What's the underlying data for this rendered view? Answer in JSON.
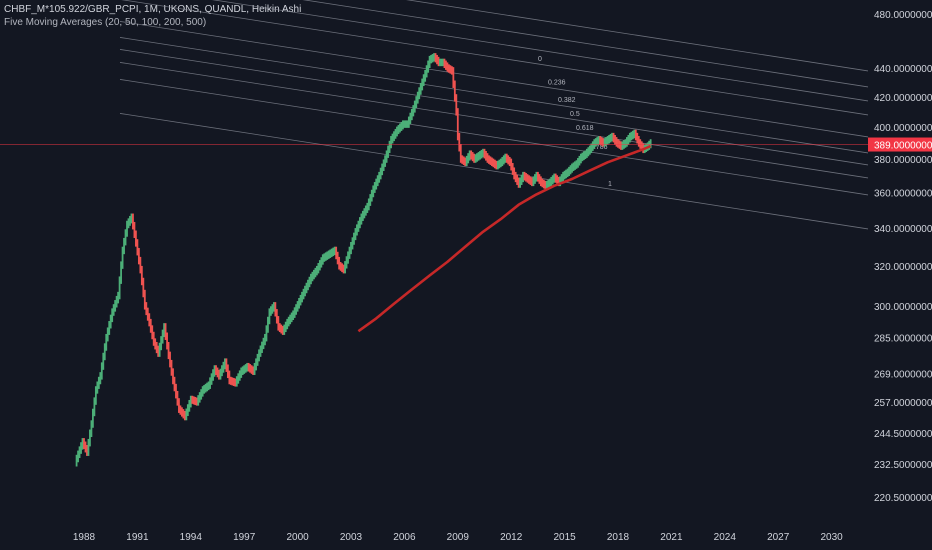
{
  "header": {
    "symbol_line": "CHBF_M*105.922/GBR_PCPI, 1M, UKONS, QUANDL, Heikin Ashi",
    "indicator_line": "Five Moving Averages (20, 50, 100, 200, 500)"
  },
  "colors": {
    "background": "#131722",
    "up": "#26a69a",
    "up_bright": "#4caf78",
    "down": "#ef5350",
    "ma": "#c62828",
    "fib_line": "#8a8e99",
    "price_line": "#f23645",
    "axis_text": "#d1d4dc"
  },
  "chart_data": {
    "type": "candlestick",
    "title": "",
    "y_scale": "log",
    "x_ticks": [
      "1988",
      "1991",
      "1994",
      "1997",
      "2000",
      "2003",
      "2006",
      "2009",
      "2012",
      "2015",
      "2018",
      "2021",
      "2024",
      "2027",
      "2030"
    ],
    "y_ticks": [
      {
        "label": "480.00000000",
        "value": 480
      },
      {
        "label": "440.00000000",
        "value": 440
      },
      {
        "label": "420.00000000",
        "value": 420
      },
      {
        "label": "400.00000000",
        "value": 400
      },
      {
        "label": "380.00000000",
        "value": 380
      },
      {
        "label": "360.00000000",
        "value": 360
      },
      {
        "label": "340.00000000",
        "value": 340
      },
      {
        "label": "320.00000000",
        "value": 320
      },
      {
        "label": "300.00000000",
        "value": 300
      },
      {
        "label": "285.00000000",
        "value": 285
      },
      {
        "label": "269.00000000",
        "value": 269
      },
      {
        "label": "257.00000000",
        "value": 257
      },
      {
        "label": "244.50000000",
        "value": 244.5
      },
      {
        "label": "232.50000000",
        "value": 232.5
      },
      {
        "label": "220.50000000",
        "value": 220.5
      }
    ],
    "last_price": {
      "label": "389.00000000",
      "value": 389
    },
    "price_path": [
      [
        "1987-07",
        233
      ],
      [
        "1987-12",
        241
      ],
      [
        "1988-03",
        237
      ],
      [
        "1988-06",
        248
      ],
      [
        "1988-09",
        262
      ],
      [
        "1988-12",
        268
      ],
      [
        "1989-04",
        285
      ],
      [
        "1989-08",
        297
      ],
      [
        "1989-12",
        305
      ],
      [
        "1990-03",
        328
      ],
      [
        "1990-06",
        342
      ],
      [
        "1990-09",
        346
      ],
      [
        "1990-12",
        332
      ],
      [
        "1991-03",
        318
      ],
      [
        "1991-06",
        300
      ],
      [
        "1991-09",
        292
      ],
      [
        "1991-12",
        283
      ],
      [
        "1992-03",
        278
      ],
      [
        "1992-07",
        290
      ],
      [
        "1992-10",
        277
      ],
      [
        "1993-01",
        266
      ],
      [
        "1993-05",
        254
      ],
      [
        "1993-09",
        251
      ],
      [
        "1994-01",
        258
      ],
      [
        "1994-05",
        257
      ],
      [
        "1994-09",
        262
      ],
      [
        "1995-01",
        264
      ],
      [
        "1995-05",
        271
      ],
      [
        "1995-08",
        268
      ],
      [
        "1995-12",
        274
      ],
      [
        "1996-03",
        266
      ],
      [
        "1996-07",
        265
      ],
      [
        "1996-11",
        270
      ],
      [
        "1997-03",
        272
      ],
      [
        "1997-07",
        270
      ],
      [
        "1997-11",
        278
      ],
      [
        "1998-03",
        285
      ],
      [
        "1998-06",
        297
      ],
      [
        "1998-09",
        300
      ],
      [
        "1998-12",
        290
      ],
      [
        "1999-03",
        288
      ],
      [
        "1999-06",
        292
      ],
      [
        "1999-10",
        296
      ],
      [
        "2000-02",
        302
      ],
      [
        "2000-06",
        308
      ],
      [
        "2000-10",
        314
      ],
      [
        "2001-02",
        318
      ],
      [
        "2001-06",
        324
      ],
      [
        "2001-10",
        326
      ],
      [
        "2002-02",
        328
      ],
      [
        "2002-05",
        320
      ],
      [
        "2002-08",
        318
      ],
      [
        "2002-12",
        328
      ],
      [
        "2003-04",
        338
      ],
      [
        "2003-08",
        346
      ],
      [
        "2003-12",
        352
      ],
      [
        "2004-04",
        362
      ],
      [
        "2004-08",
        370
      ],
      [
        "2004-12",
        380
      ],
      [
        "2005-04",
        392
      ],
      [
        "2005-08",
        398
      ],
      [
        "2005-12",
        402
      ],
      [
        "2006-03",
        402
      ],
      [
        "2006-07",
        412
      ],
      [
        "2006-11",
        424
      ],
      [
        "2007-03",
        436
      ],
      [
        "2007-06",
        446
      ],
      [
        "2007-09",
        448
      ],
      [
        "2007-12",
        444
      ],
      [
        "2008-03",
        444
      ],
      [
        "2008-06",
        440
      ],
      [
        "2008-09",
        438
      ],
      [
        "2008-12",
        410
      ],
      [
        "2009-01",
        394
      ],
      [
        "2009-03",
        380
      ],
      [
        "2009-06",
        378
      ],
      [
        "2009-09",
        383
      ],
      [
        "2009-12",
        380
      ],
      [
        "2010-03",
        382
      ],
      [
        "2010-06",
        384
      ],
      [
        "2010-09",
        380
      ],
      [
        "2010-12",
        378
      ],
      [
        "2011-03",
        376
      ],
      [
        "2011-06",
        378
      ],
      [
        "2011-09",
        381
      ],
      [
        "2011-12",
        378
      ],
      [
        "2012-03",
        370
      ],
      [
        "2012-06",
        365
      ],
      [
        "2012-09",
        370
      ],
      [
        "2012-12",
        368
      ],
      [
        "2013-03",
        366
      ],
      [
        "2013-06",
        370
      ],
      [
        "2013-09",
        366
      ],
      [
        "2013-12",
        364
      ],
      [
        "2014-03",
        366
      ],
      [
        "2014-06",
        369
      ],
      [
        "2014-09",
        366
      ],
      [
        "2014-12",
        370
      ],
      [
        "2015-03",
        372
      ],
      [
        "2015-06",
        375
      ],
      [
        "2015-09",
        377
      ],
      [
        "2015-12",
        381
      ],
      [
        "2016-03",
        383
      ],
      [
        "2016-06",
        386
      ],
      [
        "2016-09",
        390
      ],
      [
        "2016-12",
        392
      ],
      [
        "2017-03",
        390
      ],
      [
        "2017-06",
        392
      ],
      [
        "2017-09",
        394
      ],
      [
        "2017-12",
        390
      ],
      [
        "2018-03",
        388
      ],
      [
        "2018-06",
        390
      ],
      [
        "2018-09",
        394
      ],
      [
        "2018-12",
        396
      ],
      [
        "2019-03",
        390
      ],
      [
        "2019-06",
        386
      ],
      [
        "2019-09",
        388
      ],
      [
        "2019-11",
        390
      ]
    ],
    "moving_average_path": [
      [
        "2003-06",
        288
      ],
      [
        "2004-06",
        294
      ],
      [
        "2005-06",
        301
      ],
      [
        "2006-06",
        308
      ],
      [
        "2007-06",
        315
      ],
      [
        "2008-06",
        322
      ],
      [
        "2009-06",
        330
      ],
      [
        "2010-06",
        338
      ],
      [
        "2011-06",
        345
      ],
      [
        "2012-06",
        353
      ],
      [
        "2013-06",
        359
      ],
      [
        "2014-06",
        364
      ],
      [
        "2015-06",
        368
      ],
      [
        "2016-06",
        373
      ],
      [
        "2017-06",
        378
      ],
      [
        "2018-06",
        382
      ],
      [
        "2019-06",
        386
      ],
      [
        "2019-11",
        388
      ]
    ],
    "fib_channel": {
      "levels": [
        "0",
        "0.236",
        "0.382",
        "0.5",
        "0.618",
        "0.786",
        "1"
      ],
      "slope_start": [
        "1992-06",
        480
      ],
      "slope_end": [
        "2008-01",
        448
      ]
    }
  }
}
